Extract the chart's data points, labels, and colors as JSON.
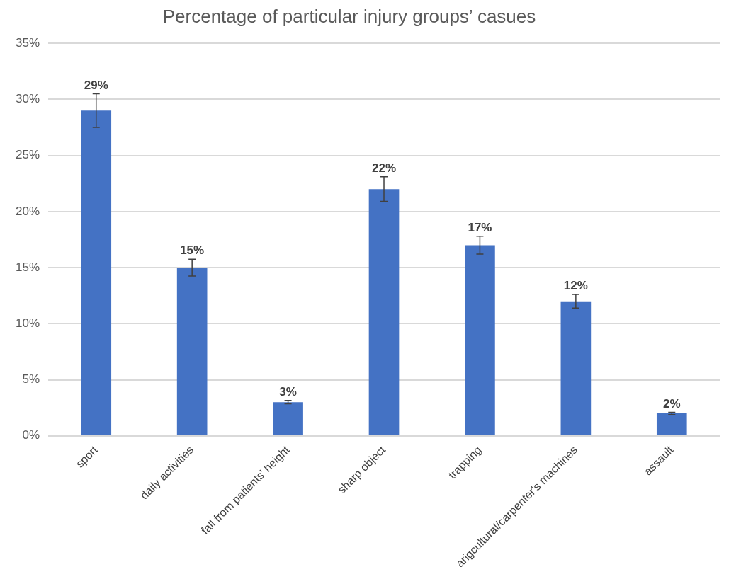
{
  "chart_data": {
    "type": "bar",
    "title": "Percentage of particular injury groups’ casues",
    "categories": [
      "sport",
      "daily activities",
      "fall from patients' height",
      "sharp object",
      "trapping",
      "arigcultural/carpenter's machines",
      "assault"
    ],
    "values": [
      29,
      15,
      3,
      22,
      17,
      12,
      2
    ],
    "errors": [
      1.5,
      0.75,
      0.15,
      1.1,
      0.8,
      0.6,
      0.1
    ],
    "value_labels": [
      "29%",
      "15%",
      "3%",
      "22%",
      "17%",
      "12%",
      "2%"
    ],
    "color": "#4472c4",
    "ylim": [
      0,
      35
    ],
    "yticks": [
      {
        "value": 0,
        "label": "0%"
      },
      {
        "value": 5,
        "label": "5%"
      },
      {
        "value": 10,
        "label": "10%"
      },
      {
        "value": 15,
        "label": "15%"
      },
      {
        "value": 20,
        "label": "20%"
      },
      {
        "value": 25,
        "label": "25%"
      },
      {
        "value": 30,
        "label": "30%"
      },
      {
        "value": 35,
        "label": "35%"
      }
    ],
    "grid": "y",
    "legend": false
  }
}
